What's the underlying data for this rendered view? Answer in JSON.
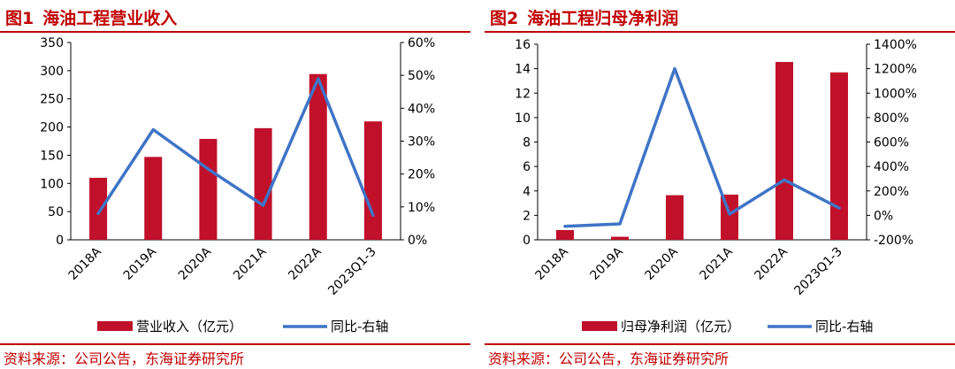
{
  "colors": {
    "accent": "#c00000",
    "bar": "#c0102a",
    "line": "#3f74c6"
  },
  "figures": [
    {
      "fig_no": "图1",
      "fig_title": "海油工程营业收入",
      "source": "资料来源：公司公告，东海证券研究所",
      "chart_data": {
        "type": "bar",
        "categories": [
          "2018A",
          "2019A",
          "2020A",
          "2021A",
          "2022A",
          "2023Q1-3"
        ],
        "series": [
          {
            "name": "营业收入（亿元）",
            "type": "bar",
            "axis": "left",
            "values": [
              110,
              147,
              179,
              198,
              294,
              210
            ]
          },
          {
            "name": "同比-右轴",
            "type": "line",
            "axis": "right",
            "values": [
              8,
              33.5,
              21.5,
              10.5,
              49,
              7.5
            ]
          }
        ],
        "ylim_left": [
          0,
          350
        ],
        "yticks_left": [
          0,
          50,
          100,
          150,
          200,
          250,
          300,
          350
        ],
        "ytick_labels_left": [
          "0",
          "50",
          "100",
          "150",
          "200",
          "250",
          "300",
          "350"
        ],
        "ylim_right": [
          0,
          60
        ],
        "yticks_right": [
          0,
          10,
          20,
          30,
          40,
          50,
          60
        ],
        "ytick_labels_right": [
          "0%",
          "10%",
          "20%",
          "30%",
          "40%",
          "50%",
          "60%"
        ],
        "legend_position": "bottom",
        "grid": false
      }
    },
    {
      "fig_no": "图2",
      "fig_title": "海油工程归母净利润",
      "source": "资料来源：公司公告，东海证券研究所",
      "chart_data": {
        "type": "bar",
        "categories": [
          "2018A",
          "2019A",
          "2020A",
          "2021A",
          "2022A",
          "2023Q1-3"
        ],
        "series": [
          {
            "name": "归母净利润（亿元）",
            "type": "bar",
            "axis": "left",
            "values": [
              0.8,
              0.25,
              3.65,
              3.7,
              14.55,
              13.7
            ]
          },
          {
            "name": "同比-右轴",
            "type": "line",
            "axis": "right",
            "values": [
              -90,
              -70,
              1200,
              10,
              290,
              60
            ]
          }
        ],
        "ylim_left": [
          0,
          16
        ],
        "yticks_left": [
          0,
          2,
          4,
          6,
          8,
          10,
          12,
          14,
          16
        ],
        "ytick_labels_left": [
          "0",
          "2",
          "4",
          "6",
          "8",
          "10",
          "12",
          "14",
          "16"
        ],
        "ylim_right": [
          -200,
          1400
        ],
        "yticks_right": [
          -200,
          0,
          200,
          400,
          600,
          800,
          1000,
          1200,
          1400
        ],
        "ytick_labels_right": [
          "-200%",
          "0%",
          "200%",
          "400%",
          "600%",
          "800%",
          "1000%",
          "1200%",
          "1400%"
        ],
        "legend_position": "bottom",
        "grid": false
      }
    }
  ]
}
